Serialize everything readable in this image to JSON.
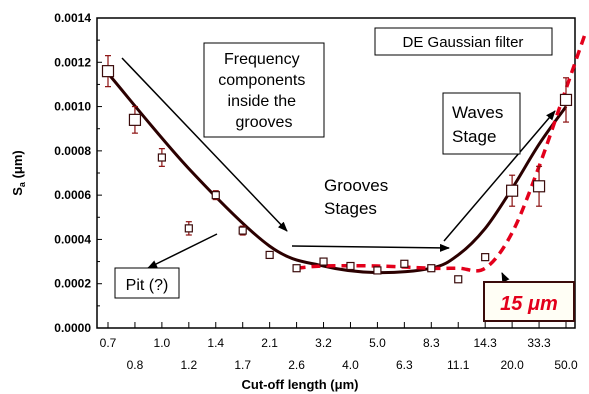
{
  "chart_data": {
    "type": "scatter",
    "title": "",
    "xlabel": "Cut-off length (μm)",
    "ylabel_main": "S",
    "ylabel_sub": "a",
    "ylabel_unit": " (μm)",
    "ylim": [
      0,
      0.0014
    ],
    "y_ticks": [
      "0.0000",
      "0.0002",
      "0.0004",
      "0.0006",
      "0.0008",
      "0.0010",
      "0.0012",
      "0.0014"
    ],
    "categories": [
      "0.7",
      "0.8",
      "1.0",
      "1.2",
      "1.4",
      "1.7",
      "2.1",
      "2.6",
      "3.2",
      "4.0",
      "5.0",
      "6.3",
      "8.3",
      "11.1",
      "14.3",
      "20.0",
      "33.3",
      "50.0"
    ],
    "series": [
      {
        "values": [
          0.00116,
          0.00094,
          0.00077,
          0.00045,
          0.0006,
          0.00044,
          0.00033,
          0.00027,
          0.0003,
          0.00028,
          0.00026,
          0.00029,
          0.00027,
          0.00022,
          0.00032,
          0.00062,
          0.00064,
          0.00103
        ],
        "errors": [
          7e-05,
          6e-05,
          4e-05,
          3e-05,
          2e-05,
          2e-05,
          1e-05,
          1e-05,
          1e-05,
          1e-05,
          1e-05,
          1e-05,
          1e-05,
          1e-05,
          1e-05,
          7e-05,
          9e-05,
          0.0001
        ]
      }
    ],
    "fit_curve": {
      "x": [
        0.7,
        1.2,
        2.1,
        3.2,
        5.0,
        8.3,
        11.1,
        14.3,
        20.0,
        33.3,
        50.0
      ],
      "y": [
        0.00115,
        0.00072,
        0.00037,
        0.00028,
        0.00025,
        0.00027,
        0.00033,
        0.00045,
        0.00063,
        0.00083,
        0.001
      ]
    },
    "threshold_line": {
      "x": [
        2.6,
        3.2,
        5.0,
        8.3,
        11.1,
        14.3,
        20.0,
        33.3,
        50.0
      ],
      "y": [
        0.00027,
        0.00028,
        0.00028,
        0.00027,
        0.00027,
        0.00027,
        0.00043,
        0.00073,
        0.00108
      ]
    },
    "annotations": {
      "filter_box": "DE Gaussian filter",
      "frequency_box": [
        "Frequency",
        "components",
        "inside the",
        "grooves"
      ],
      "grooves_label": [
        "Grooves",
        "Stages"
      ],
      "waves_box": [
        "Waves",
        "Stage"
      ],
      "pit_box": "Pit (?)",
      "cutoff_box": "15 μm"
    },
    "colors": {
      "fit_curve": "#2b0000",
      "threshold": "#e3001b",
      "points": "#3a0b0b",
      "error_bars": "#8b0f0f",
      "cutoff_text": "#e3001b"
    }
  }
}
